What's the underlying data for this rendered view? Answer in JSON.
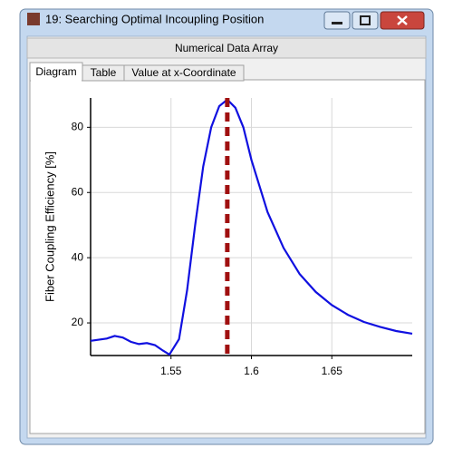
{
  "window": {
    "title": "19: Searching Optimal Incoupling Position",
    "header": "Numerical Data Array",
    "tabs": [
      "Diagram",
      "Table",
      "Value at x-Coordinate"
    ]
  },
  "chart_data": {
    "type": "line",
    "ylabel": "Fiber Coupling Efficiency [%]",
    "x": [
      1.5,
      1.51,
      1.515,
      1.52,
      1.525,
      1.53,
      1.535,
      1.54,
      1.545,
      1.549,
      1.555,
      1.56,
      1.565,
      1.57,
      1.575,
      1.58,
      1.585,
      1.59,
      1.595,
      1.6,
      1.605,
      1.61,
      1.62,
      1.63,
      1.64,
      1.65,
      1.66,
      1.67,
      1.68,
      1.69,
      1.7
    ],
    "series": [
      {
        "color": "#1010e0",
        "values": [
          14.5,
          15.2,
          16,
          15.5,
          14.2,
          13.5,
          13.8,
          13.2,
          11.5,
          10.3,
          15,
          30,
          50,
          68,
          80,
          86.5,
          88.5,
          86,
          80,
          70,
          62,
          54,
          43,
          35,
          29.5,
          25.5,
          22.5,
          20.3,
          18.8,
          17.5,
          16.7
        ]
      }
    ],
    "marker_x": 1.585,
    "marker_color": "#a01010",
    "xlim": [
      1.5,
      1.7
    ],
    "xticks": [
      1.55,
      1.6,
      1.65
    ],
    "ylim": [
      10,
      89
    ],
    "yticks": [
      20,
      40,
      60,
      80
    ],
    "grid": true
  }
}
